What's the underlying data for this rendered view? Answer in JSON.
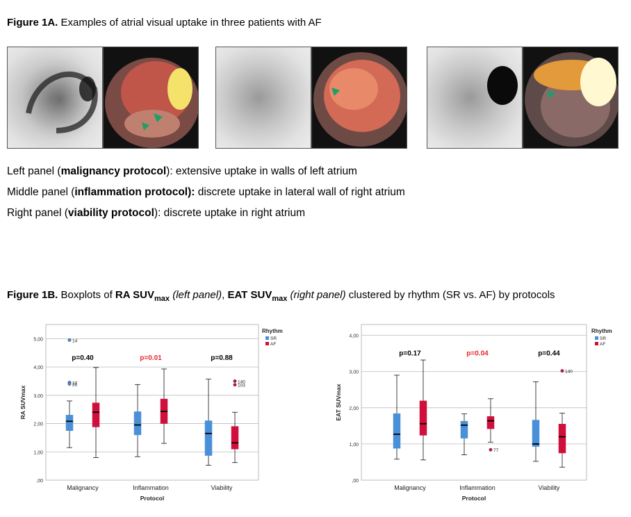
{
  "fig1a": {
    "label": "Figure 1A.",
    "title": "Examples of  atrial visual uptake in three patients with AF",
    "captions": [
      {
        "pre": "Left panel (",
        "bold": "malignancy protocol",
        "post": "): extensive uptake in walls of left atrium"
      },
      {
        "pre": "Middle panel (",
        "bold": "inflammation protocol):",
        "post": " discrete uptake in lateral wall of right atrium"
      },
      {
        "pre": "Right panel (",
        "bold": "viability protocol",
        "post": "): discrete uptake in right atrium"
      }
    ]
  },
  "fig1b": {
    "label": "Figure 1B.",
    "t1": " Boxplots of ",
    "b1": "RA SUV",
    "s1": "max",
    "i1": " (left panel)",
    "t2": ", ",
    "b2": "EAT SUV",
    "s2": "max",
    "i2": " (right panel)",
    "t3": " clustered by rhythm (SR vs. AF) by protocols"
  },
  "colors": {
    "sr": "#4a90d9",
    "af": "#d0103a",
    "sig": "#e8262b"
  },
  "chart_data": [
    {
      "type": "box",
      "xlabel": "Protocol",
      "ylabel": "RA SUVmax",
      "legend_title": "Rhythm",
      "legend": [
        "SR",
        "AF"
      ],
      "ylim": [
        0,
        5.5
      ],
      "yticks": [
        "5,00",
        "4,00",
        "3,00",
        "2,00",
        "1,00",
        ",00"
      ],
      "ytick_values": [
        5,
        4,
        3,
        2,
        1,
        0
      ],
      "categories": [
        "Malignancy",
        "Inflammation",
        "Viability"
      ],
      "pvalues": [
        "p=0.40",
        "p=0.01",
        "p=0.88"
      ],
      "significant": [
        false,
        true,
        false
      ],
      "series": [
        {
          "name": "SR",
          "boxes": [
            {
              "min": 1.15,
              "q1": 1.75,
              "median": 2.08,
              "q3": 2.3,
              "max": 2.8
            },
            {
              "min": 0.83,
              "q1": 1.6,
              "median": 1.95,
              "q3": 2.42,
              "max": 3.38
            },
            {
              "min": 0.53,
              "q1": 0.87,
              "median": 1.65,
              "q3": 2.1,
              "max": 3.57
            }
          ]
        },
        {
          "name": "AF",
          "boxes": [
            {
              "min": 0.8,
              "q1": 1.88,
              "median": 2.4,
              "q3": 2.73,
              "max": 3.98
            },
            {
              "min": 1.3,
              "q1": 2.0,
              "median": 2.43,
              "q3": 2.87,
              "max": 3.93
            },
            {
              "min": 0.62,
              "q1": 1.1,
              "median": 1.32,
              "q3": 1.9,
              "max": 2.4
            }
          ]
        }
      ],
      "outliers": [
        {
          "cat": 0,
          "series": 0,
          "y": 4.95,
          "label": "14"
        },
        {
          "cat": 0,
          "series": 0,
          "y": 3.45,
          "label": "27"
        },
        {
          "cat": 0,
          "series": 0,
          "y": 3.4,
          "label": "26"
        },
        {
          "cat": 2,
          "series": 1,
          "y": 3.5,
          "label": "140"
        },
        {
          "cat": 2,
          "series": 1,
          "y": 3.37,
          "label": "103"
        }
      ]
    },
    {
      "type": "box",
      "xlabel": "Protocol",
      "ylabel": "EAT SUVmax",
      "legend_title": "Rhythm",
      "legend": [
        "SR",
        "AF"
      ],
      "ylim": [
        0,
        4.3
      ],
      "yticks": [
        "4,00",
        "3,00",
        "2,00",
        "1,00",
        ",00"
      ],
      "ytick_values": [
        4,
        3,
        2,
        1,
        0
      ],
      "categories": [
        "Malignancy",
        "Inflammation",
        "Viability"
      ],
      "pvalues": [
        "p=0.17",
        "p=0.04",
        "p=0.44"
      ],
      "significant": [
        false,
        true,
        false
      ],
      "series": [
        {
          "name": "SR",
          "boxes": [
            {
              "min": 0.58,
              "q1": 0.88,
              "median": 1.27,
              "q3": 1.84,
              "max": 2.9
            },
            {
              "min": 0.7,
              "q1": 1.16,
              "median": 1.52,
              "q3": 1.63,
              "max": 1.83
            },
            {
              "min": 0.52,
              "q1": 0.93,
              "median": 1.0,
              "q3": 1.66,
              "max": 2.72
            }
          ]
        },
        {
          "name": "AF",
          "boxes": [
            {
              "min": 0.56,
              "q1": 1.24,
              "median": 1.56,
              "q3": 2.19,
              "max": 3.32
            },
            {
              "min": 1.05,
              "q1": 1.42,
              "median": 1.64,
              "q3": 1.76,
              "max": 2.25
            },
            {
              "min": 0.36,
              "q1": 0.75,
              "median": 1.2,
              "q3": 1.55,
              "max": 1.85
            }
          ]
        }
      ],
      "outliers": [
        {
          "cat": 1,
          "series": 1,
          "y": 0.84,
          "label": "77"
        },
        {
          "cat": 2,
          "series": 1,
          "y": 3.02,
          "label": "140"
        }
      ]
    }
  ]
}
